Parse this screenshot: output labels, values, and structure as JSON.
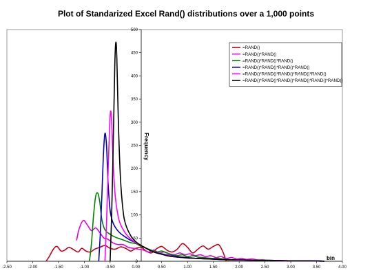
{
  "chart_data": {
    "type": "line",
    "title": "Plot of Standarized Excel Rand() distributions over a 1,000 points",
    "xlabel": "bin",
    "ylabel": "Frequency",
    "xlim": [
      -2.5,
      4.0
    ],
    "ylim": [
      0,
      500
    ],
    "x_ticks": [
      "-2.50",
      "-2.00",
      "-1.50",
      "-1.00",
      "-0.50",
      "0.00",
      "0.50",
      "1.00",
      "1.50",
      "2.00",
      "2.50",
      "3.00",
      "3.50",
      "4.00"
    ],
    "y_ticks": [
      "0",
      "50",
      "100",
      "150",
      "200",
      "250",
      "300",
      "350",
      "400",
      "450",
      "500"
    ],
    "grid": false,
    "legend_position": "top-right",
    "series": [
      {
        "name": "=RAND()",
        "color": "#c0001c",
        "points": [
          [
            -1.74,
            0
          ],
          [
            -1.68,
            10
          ],
          [
            -1.6,
            26
          ],
          [
            -1.53,
            32
          ],
          [
            -1.45,
            22
          ],
          [
            -1.38,
            24
          ],
          [
            -1.3,
            30
          ],
          [
            -1.22,
            26
          ],
          [
            -1.12,
            20
          ],
          [
            -1.05,
            28
          ],
          [
            -0.97,
            22
          ],
          [
            -0.88,
            20
          ],
          [
            -0.8,
            26
          ],
          [
            -0.7,
            30
          ],
          [
            -0.6,
            34
          ],
          [
            -0.5,
            28
          ],
          [
            -0.4,
            26
          ],
          [
            -0.3,
            31
          ],
          [
            -0.2,
            28
          ],
          [
            -0.1,
            22
          ],
          [
            0.0,
            28
          ],
          [
            0.1,
            30
          ],
          [
            0.2,
            22
          ],
          [
            0.3,
            18
          ],
          [
            0.4,
            27
          ],
          [
            0.5,
            32
          ],
          [
            0.6,
            24
          ],
          [
            0.7,
            20
          ],
          [
            0.8,
            26
          ],
          [
            0.9,
            38
          ],
          [
            1.0,
            30
          ],
          [
            1.1,
            18
          ],
          [
            1.2,
            26
          ],
          [
            1.3,
            33
          ],
          [
            1.4,
            26
          ],
          [
            1.5,
            32
          ],
          [
            1.6,
            36
          ],
          [
            1.67,
            24
          ],
          [
            1.72,
            10
          ],
          [
            1.75,
            0
          ]
        ]
      },
      {
        "name": "=RAND()*RAND()",
        "color": "#e000e0",
        "points": [
          [
            -1.15,
            45
          ],
          [
            -1.1,
            70
          ],
          [
            -1.02,
            88
          ],
          [
            -0.94,
            78
          ],
          [
            -0.86,
            66
          ],
          [
            -0.78,
            72
          ],
          [
            -0.7,
            62
          ],
          [
            -0.62,
            50
          ],
          [
            -0.55,
            48
          ],
          [
            -0.45,
            40
          ],
          [
            -0.35,
            36
          ],
          [
            -0.25,
            36
          ],
          [
            -0.15,
            30
          ],
          [
            -0.05,
            28
          ],
          [
            0.05,
            26
          ],
          [
            0.15,
            24
          ],
          [
            0.25,
            20
          ],
          [
            0.35,
            24
          ],
          [
            0.45,
            18
          ],
          [
            0.55,
            20
          ],
          [
            0.65,
            16
          ],
          [
            0.75,
            14
          ],
          [
            0.85,
            18
          ],
          [
            0.95,
            14
          ],
          [
            1.05,
            16
          ],
          [
            1.15,
            12
          ],
          [
            1.25,
            14
          ],
          [
            1.35,
            10
          ],
          [
            1.45,
            12
          ],
          [
            1.55,
            8
          ],
          [
            1.65,
            10
          ],
          [
            1.75,
            6
          ],
          [
            1.85,
            8
          ],
          [
            1.95,
            5
          ],
          [
            2.05,
            6
          ],
          [
            2.15,
            4
          ],
          [
            2.25,
            5
          ],
          [
            2.35,
            3
          ],
          [
            2.45,
            3
          ],
          [
            2.55,
            2
          ],
          [
            2.65,
            2
          ],
          [
            2.75,
            1
          ],
          [
            2.85,
            1
          ],
          [
            2.95,
            0
          ]
        ]
      },
      {
        "name": "=RAND()*RAND()*RAND()",
        "color": "#008000",
        "points": [
          [
            -0.9,
            0
          ],
          [
            -0.86,
            40
          ],
          [
            -0.82,
            100
          ],
          [
            -0.78,
            140
          ],
          [
            -0.74,
            147
          ],
          [
            -0.7,
            128
          ],
          [
            -0.66,
            90
          ],
          [
            -0.6,
            68
          ],
          [
            -0.5,
            58
          ],
          [
            -0.4,
            52
          ],
          [
            -0.3,
            48
          ],
          [
            -0.2,
            44
          ],
          [
            -0.1,
            40
          ],
          [
            0.0,
            38
          ],
          [
            0.1,
            32
          ],
          [
            0.2,
            28
          ],
          [
            0.3,
            24
          ],
          [
            0.4,
            20
          ],
          [
            0.5,
            22
          ],
          [
            0.6,
            18
          ],
          [
            0.7,
            14
          ],
          [
            0.8,
            12
          ],
          [
            0.9,
            14
          ],
          [
            1.0,
            10
          ],
          [
            1.1,
            12
          ],
          [
            1.2,
            9
          ],
          [
            1.3,
            8
          ],
          [
            1.4,
            7
          ],
          [
            1.5,
            6
          ],
          [
            1.6,
            6
          ],
          [
            1.7,
            5
          ],
          [
            1.8,
            4
          ],
          [
            1.9,
            3
          ],
          [
            2.0,
            3
          ],
          [
            2.2,
            2
          ],
          [
            2.5,
            2
          ],
          [
            2.8,
            1
          ],
          [
            3.1,
            1
          ],
          [
            3.4,
            1
          ],
          [
            3.6,
            0
          ]
        ]
      },
      {
        "name": "=RAND()*RAND()*RAND()*RAND()",
        "color": "#0000c0",
        "points": [
          [
            -0.72,
            0
          ],
          [
            -0.69,
            60
          ],
          [
            -0.66,
            140
          ],
          [
            -0.63,
            230
          ],
          [
            -0.6,
            276
          ],
          [
            -0.57,
            250
          ],
          [
            -0.54,
            170
          ],
          [
            -0.5,
            110
          ],
          [
            -0.45,
            85
          ],
          [
            -0.38,
            70
          ],
          [
            -0.3,
            60
          ],
          [
            -0.2,
            52
          ],
          [
            -0.1,
            45
          ],
          [
            0.0,
            40
          ],
          [
            0.1,
            34
          ],
          [
            0.2,
            28
          ],
          [
            0.3,
            22
          ],
          [
            0.4,
            18
          ],
          [
            0.5,
            16
          ],
          [
            0.6,
            14
          ],
          [
            0.7,
            12
          ],
          [
            0.8,
            10
          ],
          [
            0.9,
            9
          ],
          [
            1.0,
            8
          ],
          [
            1.1,
            7
          ],
          [
            1.2,
            6
          ],
          [
            1.4,
            5
          ],
          [
            1.6,
            4
          ],
          [
            1.8,
            3
          ],
          [
            2.0,
            3
          ],
          [
            2.3,
            2
          ],
          [
            2.6,
            2
          ],
          [
            2.9,
            1
          ],
          [
            3.2,
            1
          ],
          [
            3.5,
            1
          ],
          [
            3.65,
            0
          ]
        ]
      },
      {
        "name": "=RAND()*RAND()*RAND()*RAND()*RAND()",
        "color": "#ff00ff",
        "points": [
          [
            -0.6,
            0
          ],
          [
            -0.57,
            80
          ],
          [
            -0.54,
            190
          ],
          [
            -0.51,
            290
          ],
          [
            -0.49,
            324
          ],
          [
            -0.47,
            300
          ],
          [
            -0.44,
            210
          ],
          [
            -0.4,
            140
          ],
          [
            -0.35,
            100
          ],
          [
            -0.3,
            80
          ],
          [
            -0.2,
            60
          ],
          [
            -0.1,
            48
          ],
          [
            0.0,
            40
          ],
          [
            0.1,
            34
          ],
          [
            0.2,
            28
          ],
          [
            0.3,
            22
          ],
          [
            0.4,
            18
          ],
          [
            0.5,
            15
          ],
          [
            0.6,
            13
          ],
          [
            0.7,
            11
          ],
          [
            0.8,
            9
          ],
          [
            0.9,
            8
          ],
          [
            1.0,
            7
          ],
          [
            1.2,
            6
          ],
          [
            1.4,
            5
          ],
          [
            1.6,
            4
          ],
          [
            1.8,
            3
          ],
          [
            2.0,
            3
          ],
          [
            2.3,
            2
          ],
          [
            2.6,
            2
          ],
          [
            3.0,
            1
          ],
          [
            3.4,
            1
          ],
          [
            3.6,
            0
          ]
        ]
      },
      {
        "name": "=RAND()*RAND()*RAND()*RAND()*RAND()*RAND()",
        "color": "#000000",
        "points": [
          [
            -0.5,
            0
          ],
          [
            -0.47,
            100
          ],
          [
            -0.44,
            250
          ],
          [
            -0.41,
            420
          ],
          [
            -0.39,
            472
          ],
          [
            -0.37,
            440
          ],
          [
            -0.34,
            300
          ],
          [
            -0.3,
            180
          ],
          [
            -0.25,
            110
          ],
          [
            -0.2,
            80
          ],
          [
            -0.1,
            55
          ],
          [
            0.0,
            42
          ],
          [
            0.1,
            34
          ],
          [
            0.2,
            28
          ],
          [
            0.3,
            22
          ],
          [
            0.4,
            18
          ],
          [
            0.5,
            15
          ],
          [
            0.6,
            12
          ],
          [
            0.7,
            10
          ],
          [
            0.8,
            9
          ],
          [
            0.9,
            8
          ],
          [
            1.0,
            7
          ],
          [
            1.2,
            6
          ],
          [
            1.4,
            5
          ],
          [
            1.6,
            4
          ],
          [
            1.8,
            3
          ],
          [
            2.0,
            3
          ],
          [
            2.3,
            2
          ],
          [
            2.6,
            2
          ],
          [
            3.0,
            1
          ],
          [
            3.4,
            1
          ],
          [
            3.65,
            0
          ]
        ]
      }
    ]
  }
}
